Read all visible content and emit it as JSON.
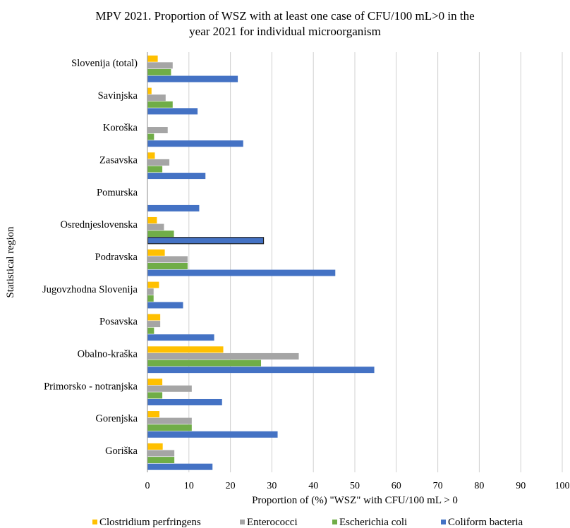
{
  "chart_data": {
    "type": "bar",
    "orientation": "horizontal",
    "title_lines": [
      "MPV 2021. Proportion of WSZ with at least one case of  CFU/100 mL>0 in the",
      "year 2021 for individual  microorganism"
    ],
    "xlabel": "Proportion  of  (%) \"WSZ\" with CFU/100 mL >  0",
    "ylabel": "Statistical  region",
    "xlim": [
      0,
      100
    ],
    "xticks": [
      "0",
      "10",
      "20",
      "30",
      "40",
      "50",
      "60",
      "70",
      "80",
      "90",
      "100"
    ],
    "grid": "vertical",
    "legend_position": "bottom",
    "categories": [
      "Slovenija (total)",
      "Savinjska",
      "Koroška",
      "Zasavska",
      "Pomurska",
      "Osrednjeslovenska",
      "Podravska",
      "Jugovzhodna Slovenija",
      "Posavska",
      "Obalno-kraška",
      "Primorsko - notranjska",
      "Gorenjska",
      "Goriška"
    ],
    "series": [
      {
        "name": "Clostridium perfringens",
        "color": "#FFC000",
        "values": [
          2.4,
          0.9,
          0,
          1.7,
          0,
          2.2,
          4.1,
          2.7,
          3.0,
          18.2,
          3.5,
          2.8,
          3.6
        ]
      },
      {
        "name": "Enterococci",
        "color": "#A5A5A5",
        "values": [
          6.0,
          4.3,
          4.8,
          5.2,
          0,
          3.9,
          9.6,
          1.4,
          3.0,
          36.4,
          10.6,
          10.6,
          6.4
        ]
      },
      {
        "name": "Escherichia coli",
        "color": "#70AD47",
        "values": [
          5.6,
          6.0,
          1.5,
          3.5,
          0,
          6.3,
          9.6,
          1.4,
          1.5,
          27.3,
          3.5,
          10.6,
          6.4
        ]
      },
      {
        "name": "Coliform bacteria",
        "color": "#4472C4",
        "values": [
          21.7,
          12.0,
          23.0,
          13.9,
          12.4,
          27.9,
          45.2,
          8.5,
          16.0,
          54.6,
          17.9,
          31.3,
          15.6
        ]
      }
    ]
  }
}
